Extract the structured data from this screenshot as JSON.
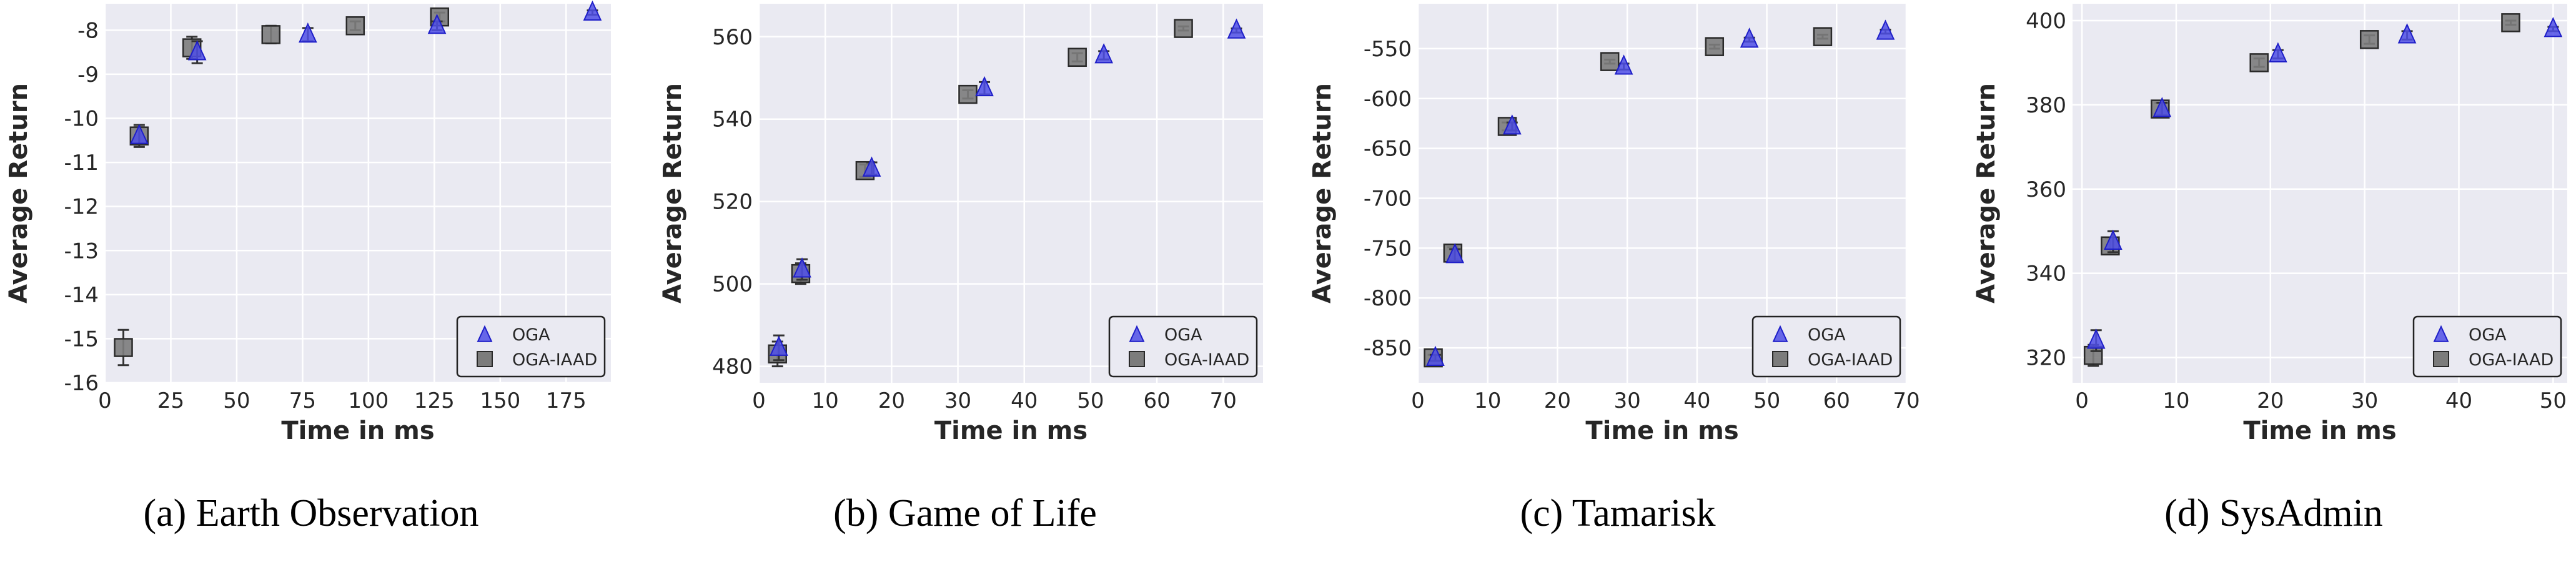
{
  "colors": {
    "plot_background": "#eaeaf2",
    "grid": "#ffffff",
    "oga": "#4f4fe6",
    "oga_edge": "#1e1ec8",
    "oga_iaad": "#7c7c7c",
    "oga_iaad_edge": "#2a2a2a",
    "legend_border": "#222222"
  },
  "chart_data": [
    {
      "type": "scatter",
      "caption": "(a) Earth Observation",
      "xlabel": "Time in ms",
      "ylabel": "Average Return",
      "xlim": [
        0,
        192
      ],
      "ylim": [
        -16,
        -7.4
      ],
      "xticks": [
        0,
        25,
        50,
        75,
        100,
        125,
        150,
        175
      ],
      "yticks": [
        -16,
        -15,
        -14,
        -13,
        -12,
        -11,
        -10,
        -9,
        -8
      ],
      "grid": true,
      "legend_position": "bottom-right",
      "series": [
        {
          "name": "OGA",
          "marker": "triangle",
          "color": "#4f4fe6",
          "points": [
            {
              "x": 13,
              "y": -10.4,
              "err": 0.2
            },
            {
              "x": 35,
              "y": -8.5,
              "err": 0.25
            },
            {
              "x": 77,
              "y": -8.1,
              "err": 0.15
            },
            {
              "x": 126,
              "y": -7.9,
              "err": 0.1
            },
            {
              "x": 185,
              "y": -7.6,
              "err": 0.05
            }
          ]
        },
        {
          "name": "OGA-IAAD",
          "marker": "square",
          "color": "#7c7c7c",
          "points": [
            {
              "x": 7,
              "y": -15.2,
              "err": 0.4
            },
            {
              "x": 13,
              "y": -10.4,
              "err": 0.25
            },
            {
              "x": 33,
              "y": -8.4,
              "err": 0.25
            },
            {
              "x": 63,
              "y": -8.1,
              "err": 0.2
            },
            {
              "x": 95,
              "y": -7.9,
              "err": 0.1
            },
            {
              "x": 127,
              "y": -7.7,
              "err": 0.1
            }
          ]
        }
      ]
    },
    {
      "type": "scatter",
      "caption": "(b) Game of Life",
      "xlabel": "Time in ms",
      "ylabel": "Average Return",
      "xlim": [
        0,
        76
      ],
      "ylim": [
        476,
        568
      ],
      "xticks": [
        0,
        10,
        20,
        30,
        40,
        50,
        60,
        70
      ],
      "yticks": [
        480,
        500,
        520,
        540,
        560
      ],
      "grid": true,
      "legend_position": "bottom-right",
      "series": [
        {
          "name": "OGA",
          "marker": "triangle",
          "color": "#4f4fe6",
          "points": [
            {
              "x": 3,
              "y": 484.5,
              "err": 3
            },
            {
              "x": 6.5,
              "y": 503.5,
              "err": 2.5
            },
            {
              "x": 17,
              "y": 528,
              "err": 1.5
            },
            {
              "x": 34,
              "y": 547.5,
              "err": 1.5
            },
            {
              "x": 52,
              "y": 555.5,
              "err": 1
            },
            {
              "x": 72,
              "y": 561.5,
              "err": 0.5
            }
          ]
        },
        {
          "name": "OGA-IAAD",
          "marker": "square",
          "color": "#7c7c7c",
          "points": [
            {
              "x": 2.8,
              "y": 483,
              "err": 3
            },
            {
              "x": 6.3,
              "y": 502.5,
              "err": 2.5
            },
            {
              "x": 16,
              "y": 527.5,
              "err": 1.5
            },
            {
              "x": 31.5,
              "y": 546,
              "err": 1
            },
            {
              "x": 48,
              "y": 555,
              "err": 1
            },
            {
              "x": 64,
              "y": 562,
              "err": 0.5
            }
          ]
        }
      ]
    },
    {
      "type": "scatter",
      "caption": "(c) Tamarisk",
      "xlabel": "Time in ms",
      "ylabel": "Average Return",
      "xlim": [
        0,
        70
      ],
      "ylim": [
        -885,
        -505
      ],
      "xticks": [
        0,
        10,
        20,
        30,
        40,
        50,
        60,
        70
      ],
      "yticks": [
        -850,
        -800,
        -750,
        -700,
        -650,
        -600,
        -550
      ],
      "grid": true,
      "legend_position": "bottom-right",
      "series": [
        {
          "name": "OGA",
          "marker": "triangle",
          "color": "#4f4fe6",
          "points": [
            {
              "x": 2.5,
              "y": -860,
              "err": 3
            },
            {
              "x": 5.3,
              "y": -757,
              "err": 6
            },
            {
              "x": 13.5,
              "y": -628,
              "err": 4
            },
            {
              "x": 29.5,
              "y": -568,
              "err": 3
            },
            {
              "x": 47.5,
              "y": -541,
              "err": 2
            },
            {
              "x": 67,
              "y": -533,
              "err": 2
            }
          ]
        },
        {
          "name": "OGA-IAAD",
          "marker": "square",
          "color": "#7c7c7c",
          "points": [
            {
              "x": 2.2,
              "y": -860,
              "err": 3
            },
            {
              "x": 5,
              "y": -755,
              "err": 6
            },
            {
              "x": 12.8,
              "y": -628,
              "err": 4
            },
            {
              "x": 27.5,
              "y": -563,
              "err": 2
            },
            {
              "x": 42.5,
              "y": -548,
              "err": 2
            },
            {
              "x": 58,
              "y": -538,
              "err": 2
            }
          ]
        }
      ]
    },
    {
      "type": "scatter",
      "caption": "(d) SysAdmin",
      "xlabel": "Time in ms",
      "ylabel": "Average Return",
      "xlim": [
        -1,
        51.5
      ],
      "ylim": [
        314,
        404
      ],
      "xticks": [
        0,
        10,
        20,
        30,
        40,
        50
      ],
      "yticks": [
        320,
        340,
        360,
        380,
        400
      ],
      "grid": true,
      "legend_position": "bottom-right",
      "series": [
        {
          "name": "OGA",
          "marker": "triangle",
          "color": "#4f4fe6",
          "points": [
            {
              "x": 1.5,
              "y": 324,
              "err": 2.5
            },
            {
              "x": 3.3,
              "y": 347.5,
              "err": 2.5
            },
            {
              "x": 8.5,
              "y": 379,
              "err": 1.5
            },
            {
              "x": 20.8,
              "y": 392,
              "err": 1
            },
            {
              "x": 34.5,
              "y": 396.5,
              "err": 1
            },
            {
              "x": 50,
              "y": 398,
              "err": 0.5
            }
          ]
        },
        {
          "name": "OGA-IAAD",
          "marker": "square",
          "color": "#7c7c7c",
          "points": [
            {
              "x": 1.2,
              "y": 320.5,
              "err": 2.5
            },
            {
              "x": 3,
              "y": 346.5,
              "err": 2
            },
            {
              "x": 8.3,
              "y": 379,
              "err": 1.5
            },
            {
              "x": 18.8,
              "y": 390,
              "err": 1
            },
            {
              "x": 30.5,
              "y": 395.5,
              "err": 1
            },
            {
              "x": 45.5,
              "y": 399.5,
              "err": 0.5
            }
          ]
        }
      ]
    }
  ]
}
